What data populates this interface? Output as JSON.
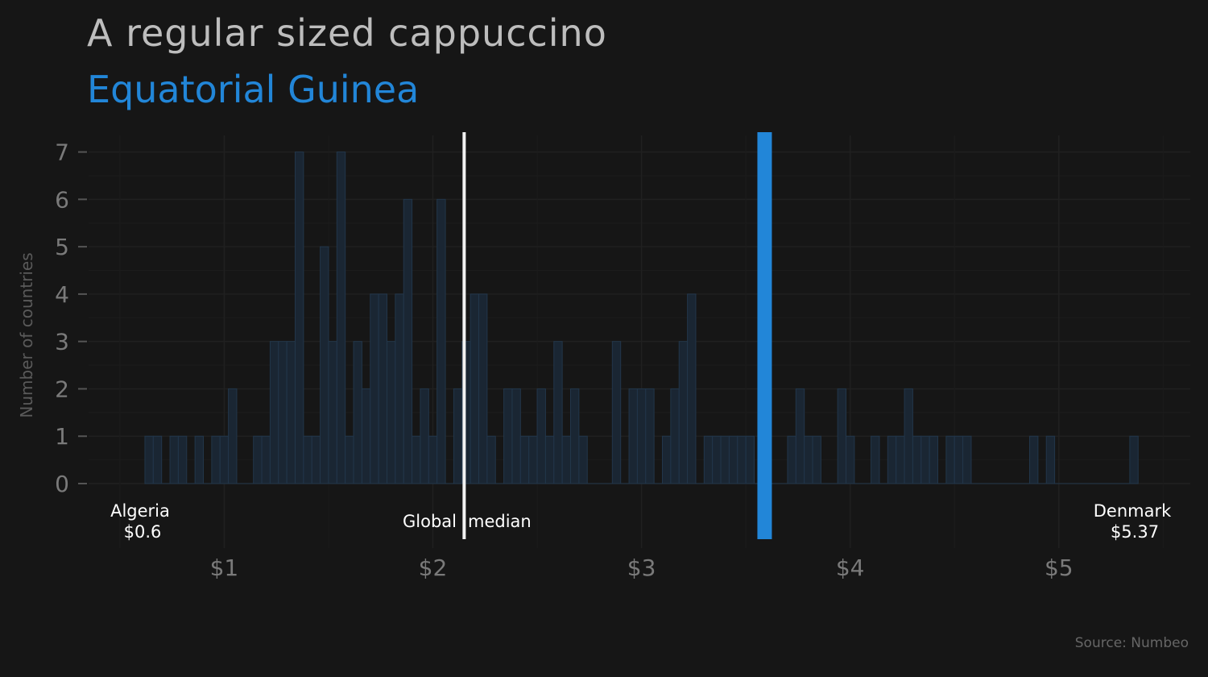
{
  "chart_data": {
    "type": "bar",
    "title": "A regular sized cappuccino",
    "subtitle": "Equatorial Guinea",
    "ylabel": "Number of countries",
    "xlabel": "",
    "source": "Source: Numbeo",
    "xlim": [
      0.35,
      5.63
    ],
    "ylim": [
      0,
      7.35
    ],
    "bin_width": 0.04,
    "xticks": [
      {
        "value": 1,
        "label": "$1"
      },
      {
        "value": 2,
        "label": "$2"
      },
      {
        "value": 3,
        "label": "$3"
      },
      {
        "value": 4,
        "label": "$4"
      },
      {
        "value": 5,
        "label": "$5"
      }
    ],
    "yticks": [
      {
        "value": 0,
        "label": "0"
      },
      {
        "value": 1,
        "label": "1"
      },
      {
        "value": 2,
        "label": "2"
      },
      {
        "value": 3,
        "label": "3"
      },
      {
        "value": 4,
        "label": "4"
      },
      {
        "value": 5,
        "label": "5"
      },
      {
        "value": 6,
        "label": "6"
      },
      {
        "value": 7,
        "label": "7"
      }
    ],
    "bins": [
      {
        "x": 0.62,
        "count": 1
      },
      {
        "x": 0.66,
        "count": 1
      },
      {
        "x": 0.7,
        "count": 0
      },
      {
        "x": 0.74,
        "count": 1
      },
      {
        "x": 0.78,
        "count": 1
      },
      {
        "x": 0.82,
        "count": 0
      },
      {
        "x": 0.86,
        "count": 1
      },
      {
        "x": 0.9,
        "count": 0
      },
      {
        "x": 0.94,
        "count": 1
      },
      {
        "x": 0.98,
        "count": 1
      },
      {
        "x": 1.02,
        "count": 2
      },
      {
        "x": 1.06,
        "count": 0
      },
      {
        "x": 1.1,
        "count": 0
      },
      {
        "x": 1.14,
        "count": 1
      },
      {
        "x": 1.18,
        "count": 1
      },
      {
        "x": 1.22,
        "count": 3
      },
      {
        "x": 1.26,
        "count": 3
      },
      {
        "x": 1.3,
        "count": 3
      },
      {
        "x": 1.34,
        "count": 7
      },
      {
        "x": 1.38,
        "count": 1
      },
      {
        "x": 1.42,
        "count": 1
      },
      {
        "x": 1.46,
        "count": 5
      },
      {
        "x": 1.5,
        "count": 3
      },
      {
        "x": 1.54,
        "count": 7
      },
      {
        "x": 1.58,
        "count": 1
      },
      {
        "x": 1.62,
        "count": 3
      },
      {
        "x": 1.66,
        "count": 2
      },
      {
        "x": 1.7,
        "count": 4
      },
      {
        "x": 1.74,
        "count": 4
      },
      {
        "x": 1.78,
        "count": 3
      },
      {
        "x": 1.82,
        "count": 4
      },
      {
        "x": 1.86,
        "count": 6
      },
      {
        "x": 1.9,
        "count": 1
      },
      {
        "x": 1.94,
        "count": 2
      },
      {
        "x": 1.98,
        "count": 1
      },
      {
        "x": 2.02,
        "count": 6
      },
      {
        "x": 2.06,
        "count": 0
      },
      {
        "x": 2.1,
        "count": 2
      },
      {
        "x": 2.14,
        "count": 3
      },
      {
        "x": 2.18,
        "count": 4
      },
      {
        "x": 2.22,
        "count": 4
      },
      {
        "x": 2.26,
        "count": 1
      },
      {
        "x": 2.3,
        "count": 0
      },
      {
        "x": 2.34,
        "count": 2
      },
      {
        "x": 2.38,
        "count": 2
      },
      {
        "x": 2.42,
        "count": 1
      },
      {
        "x": 2.46,
        "count": 1
      },
      {
        "x": 2.5,
        "count": 2
      },
      {
        "x": 2.54,
        "count": 1
      },
      {
        "x": 2.58,
        "count": 3
      },
      {
        "x": 2.62,
        "count": 1
      },
      {
        "x": 2.66,
        "count": 2
      },
      {
        "x": 2.7,
        "count": 1
      },
      {
        "x": 2.74,
        "count": 0
      },
      {
        "x": 2.78,
        "count": 0
      },
      {
        "x": 2.82,
        "count": 0
      },
      {
        "x": 2.86,
        "count": 3
      },
      {
        "x": 2.9,
        "count": 0
      },
      {
        "x": 2.94,
        "count": 2
      },
      {
        "x": 2.98,
        "count": 2
      },
      {
        "x": 3.02,
        "count": 2
      },
      {
        "x": 3.06,
        "count": 0
      },
      {
        "x": 3.1,
        "count": 1
      },
      {
        "x": 3.14,
        "count": 2
      },
      {
        "x": 3.18,
        "count": 3
      },
      {
        "x": 3.22,
        "count": 4
      },
      {
        "x": 3.26,
        "count": 0
      },
      {
        "x": 3.3,
        "count": 1
      },
      {
        "x": 3.34,
        "count": 1
      },
      {
        "x": 3.38,
        "count": 1
      },
      {
        "x": 3.42,
        "count": 1
      },
      {
        "x": 3.46,
        "count": 1
      },
      {
        "x": 3.5,
        "count": 1
      },
      {
        "x": 3.54,
        "count": 0
      },
      {
        "x": 3.58,
        "count": 0
      },
      {
        "x": 3.62,
        "count": 0
      },
      {
        "x": 3.66,
        "count": 0
      },
      {
        "x": 3.7,
        "count": 1
      },
      {
        "x": 3.74,
        "count": 2
      },
      {
        "x": 3.78,
        "count": 1
      },
      {
        "x": 3.82,
        "count": 1
      },
      {
        "x": 3.86,
        "count": 0
      },
      {
        "x": 3.9,
        "count": 0
      },
      {
        "x": 3.94,
        "count": 2
      },
      {
        "x": 3.98,
        "count": 1
      },
      {
        "x": 4.02,
        "count": 0
      },
      {
        "x": 4.06,
        "count": 0
      },
      {
        "x": 4.1,
        "count": 1
      },
      {
        "x": 4.14,
        "count": 0
      },
      {
        "x": 4.18,
        "count": 1
      },
      {
        "x": 4.22,
        "count": 1
      },
      {
        "x": 4.26,
        "count": 2
      },
      {
        "x": 4.3,
        "count": 1
      },
      {
        "x": 4.34,
        "count": 1
      },
      {
        "x": 4.38,
        "count": 1
      },
      {
        "x": 4.42,
        "count": 0
      },
      {
        "x": 4.46,
        "count": 1
      },
      {
        "x": 4.5,
        "count": 1
      },
      {
        "x": 4.54,
        "count": 1
      },
      {
        "x": 4.58,
        "count": 0
      },
      {
        "x": 4.62,
        "count": 0
      },
      {
        "x": 4.66,
        "count": 0
      },
      {
        "x": 4.7,
        "count": 0
      },
      {
        "x": 4.74,
        "count": 0
      },
      {
        "x": 4.78,
        "count": 0
      },
      {
        "x": 4.82,
        "count": 0
      },
      {
        "x": 4.86,
        "count": 1
      },
      {
        "x": 4.9,
        "count": 0
      },
      {
        "x": 4.94,
        "count": 1
      },
      {
        "x": 4.98,
        "count": 0
      },
      {
        "x": 5.02,
        "count": 0
      },
      {
        "x": 5.06,
        "count": 0
      },
      {
        "x": 5.1,
        "count": 0
      },
      {
        "x": 5.14,
        "count": 0
      },
      {
        "x": 5.18,
        "count": 0
      },
      {
        "x": 5.22,
        "count": 0
      },
      {
        "x": 5.26,
        "count": 0
      },
      {
        "x": 5.3,
        "count": 0
      },
      {
        "x": 5.34,
        "count": 1
      }
    ],
    "median": {
      "value": 2.15,
      "label_left": "Global",
      "label_right": "median"
    },
    "highlight": {
      "country": "Equatorial Guinea",
      "value": 3.59
    },
    "min": {
      "country": "Algeria",
      "label": "$0.6",
      "value": 0.6
    },
    "max": {
      "country": "Denmark",
      "label": "$5.37",
      "value": 5.37
    },
    "grid": true,
    "colors": {
      "background": "#161616",
      "bar_fill": "#1a2633",
      "bar_stroke": "#22364a",
      "highlight": "#2286d8",
      "median": "#f2f2f2",
      "grid": "#202020",
      "tick": "#7a7a7a"
    }
  }
}
